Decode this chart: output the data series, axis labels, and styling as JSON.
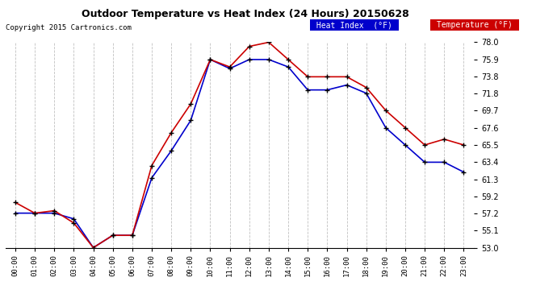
{
  "title": "Outdoor Temperature vs Heat Index (24 Hours) 20150628",
  "copyright": "Copyright 2015 Cartronics.com",
  "hours": [
    "00:00",
    "01:00",
    "02:00",
    "03:00",
    "04:00",
    "05:00",
    "06:00",
    "07:00",
    "08:00",
    "09:00",
    "10:00",
    "11:00",
    "12:00",
    "13:00",
    "14:00",
    "15:00",
    "16:00",
    "17:00",
    "18:00",
    "19:00",
    "20:00",
    "21:00",
    "22:00",
    "23:00"
  ],
  "heat_index": [
    57.2,
    57.2,
    57.2,
    56.5,
    53.0,
    54.5,
    54.5,
    61.5,
    64.8,
    68.5,
    75.9,
    74.8,
    75.9,
    75.9,
    75.0,
    72.2,
    72.2,
    72.8,
    71.8,
    67.6,
    65.5,
    63.4,
    63.4,
    62.2
  ],
  "temperature": [
    58.5,
    57.2,
    57.5,
    56.0,
    53.0,
    54.5,
    54.5,
    63.0,
    67.0,
    70.5,
    75.9,
    75.0,
    77.5,
    78.0,
    75.9,
    73.8,
    73.8,
    73.8,
    72.5,
    69.7,
    67.6,
    65.5,
    66.2,
    65.5
  ],
  "ylim": [
    53.0,
    78.0
  ],
  "yticks": [
    53.0,
    55.1,
    57.2,
    59.2,
    61.3,
    63.4,
    65.5,
    67.6,
    69.7,
    71.8,
    73.8,
    75.9,
    78.0
  ],
  "heat_index_color": "#0000cc",
  "temperature_color": "#cc0000",
  "background_color": "#ffffff",
  "grid_color": "#c0c0c0",
  "legend_heat_bg": "#0000cc",
  "legend_temp_bg": "#cc0000"
}
